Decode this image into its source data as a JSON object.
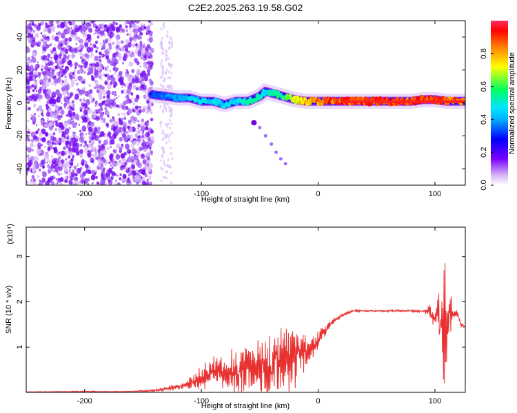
{
  "title": "C2E2.2025.263.19.58.G02",
  "chart_data": [
    {
      "type": "heatmap",
      "xlabel": "Height of straight line (km)",
      "ylabel": "Frequency (Hz)",
      "xlim": [
        -250,
        126
      ],
      "ylim": [
        -50,
        50
      ],
      "xticks": [
        -200,
        -100,
        0,
        100
      ],
      "xtick_labels": [
        "-200",
        "-100",
        "0",
        "100"
      ],
      "yticks": [
        -40,
        -20,
        0,
        20,
        40
      ],
      "ytick_labels": [
        "-40",
        "-20",
        "0",
        "20",
        "40"
      ],
      "colorbar": {
        "label": "Normalized spectral amplitude",
        "range": [
          0,
          1
        ],
        "ticks": [
          0.0,
          0.2,
          0.4,
          0.6,
          0.8
        ],
        "tick_labels": [
          "0.0",
          "0.2",
          "0.4",
          "0.6",
          "0.8"
        ],
        "colormap": [
          "#ffffff",
          "#d8b4f8",
          "#7a00ff",
          "#0000ff",
          "#00e5ff",
          "#00ff60",
          "#ffff00",
          "#ff8000",
          "#ff0000"
        ]
      },
      "noise_region_x": [
        -250,
        -142
      ],
      "weak_strip_x": [
        -135,
        -125
      ],
      "ridge": {
        "x": [
          -142,
          -130,
          -120,
          -110,
          -100,
          -90,
          -80,
          -70,
          -60,
          -50,
          -45,
          -40,
          -30,
          -20,
          -10,
          0,
          10,
          20,
          30,
          40,
          50,
          60,
          70,
          80,
          90,
          100,
          110,
          126
        ],
        "y": [
          5,
          4,
          3,
          3,
          1,
          1,
          -1,
          1,
          1,
          4,
          7,
          6,
          4,
          2,
          1,
          1,
          1,
          1,
          1,
          1,
          1,
          1,
          1,
          1,
          2,
          2,
          1,
          1
        ],
        "amplitude": [
          0.35,
          0.4,
          0.45,
          0.5,
          0.5,
          0.5,
          0.5,
          0.5,
          0.55,
          0.55,
          0.5,
          0.55,
          0.6,
          0.75,
          0.85,
          0.9,
          0.95,
          0.95,
          0.95,
          0.95,
          0.95,
          0.95,
          0.95,
          0.95,
          0.95,
          0.95,
          0.9,
          0.95
        ]
      },
      "descending_trace": {
        "x": [
          -55,
          -50,
          -45,
          -40,
          -36,
          -32,
          -28
        ],
        "y": [
          -12,
          -15,
          -20,
          -25,
          -30,
          -34,
          -37
        ]
      }
    },
    {
      "type": "line",
      "xlabel": "Height of straight line (km)",
      "ylabel": "SNR (10 * v/v)",
      "y_multiplier": "(x10⁴)",
      "xlim": [
        -250,
        126
      ],
      "ylim": [
        0,
        36500
      ],
      "xticks": [
        -200,
        -100,
        0,
        100
      ],
      "xtick_labels": [
        "-200",
        "-100",
        "0",
        "100"
      ],
      "yticks": [
        10000,
        20000,
        30000
      ],
      "ytick_labels": [
        "1",
        "2",
        "3"
      ],
      "color": "#e83030",
      "envelope": {
        "x": [
          -250,
          -220,
          -200,
          -180,
          -160,
          -140,
          -130,
          -120,
          -110,
          -100,
          -90,
          -80,
          -70,
          -60,
          -50,
          -40,
          -30,
          -20,
          -10,
          0,
          10,
          20,
          30,
          40,
          50,
          60,
          70,
          80,
          90,
          95,
          100,
          103,
          106,
          108,
          110,
          112,
          115,
          118,
          120,
          122,
          126
        ],
        "mean": [
          100,
          150,
          200,
          150,
          200,
          400,
          800,
          1200,
          2000,
          3000,
          4000,
          4500,
          4500,
          5000,
          5500,
          6000,
          7000,
          8000,
          9000,
          12000,
          15000,
          17000,
          18000,
          18000,
          18000,
          18000,
          18000,
          18000,
          18000,
          18000,
          17000,
          16000,
          13000,
          14000,
          12000,
          16000,
          17000,
          17500,
          17000,
          15000,
          14500
        ],
        "spread": [
          50,
          80,
          150,
          80,
          100,
          250,
          500,
          800,
          1500,
          2500,
          3500,
          4000,
          4500,
          5500,
          6500,
          7500,
          7000,
          6000,
          3500,
          2000,
          800,
          400,
          300,
          200,
          200,
          200,
          200,
          200,
          300,
          1200,
          2500,
          5000,
          9000,
          12000,
          15000,
          10000,
          2000,
          800,
          600,
          500,
          400
        ]
      }
    }
  ]
}
